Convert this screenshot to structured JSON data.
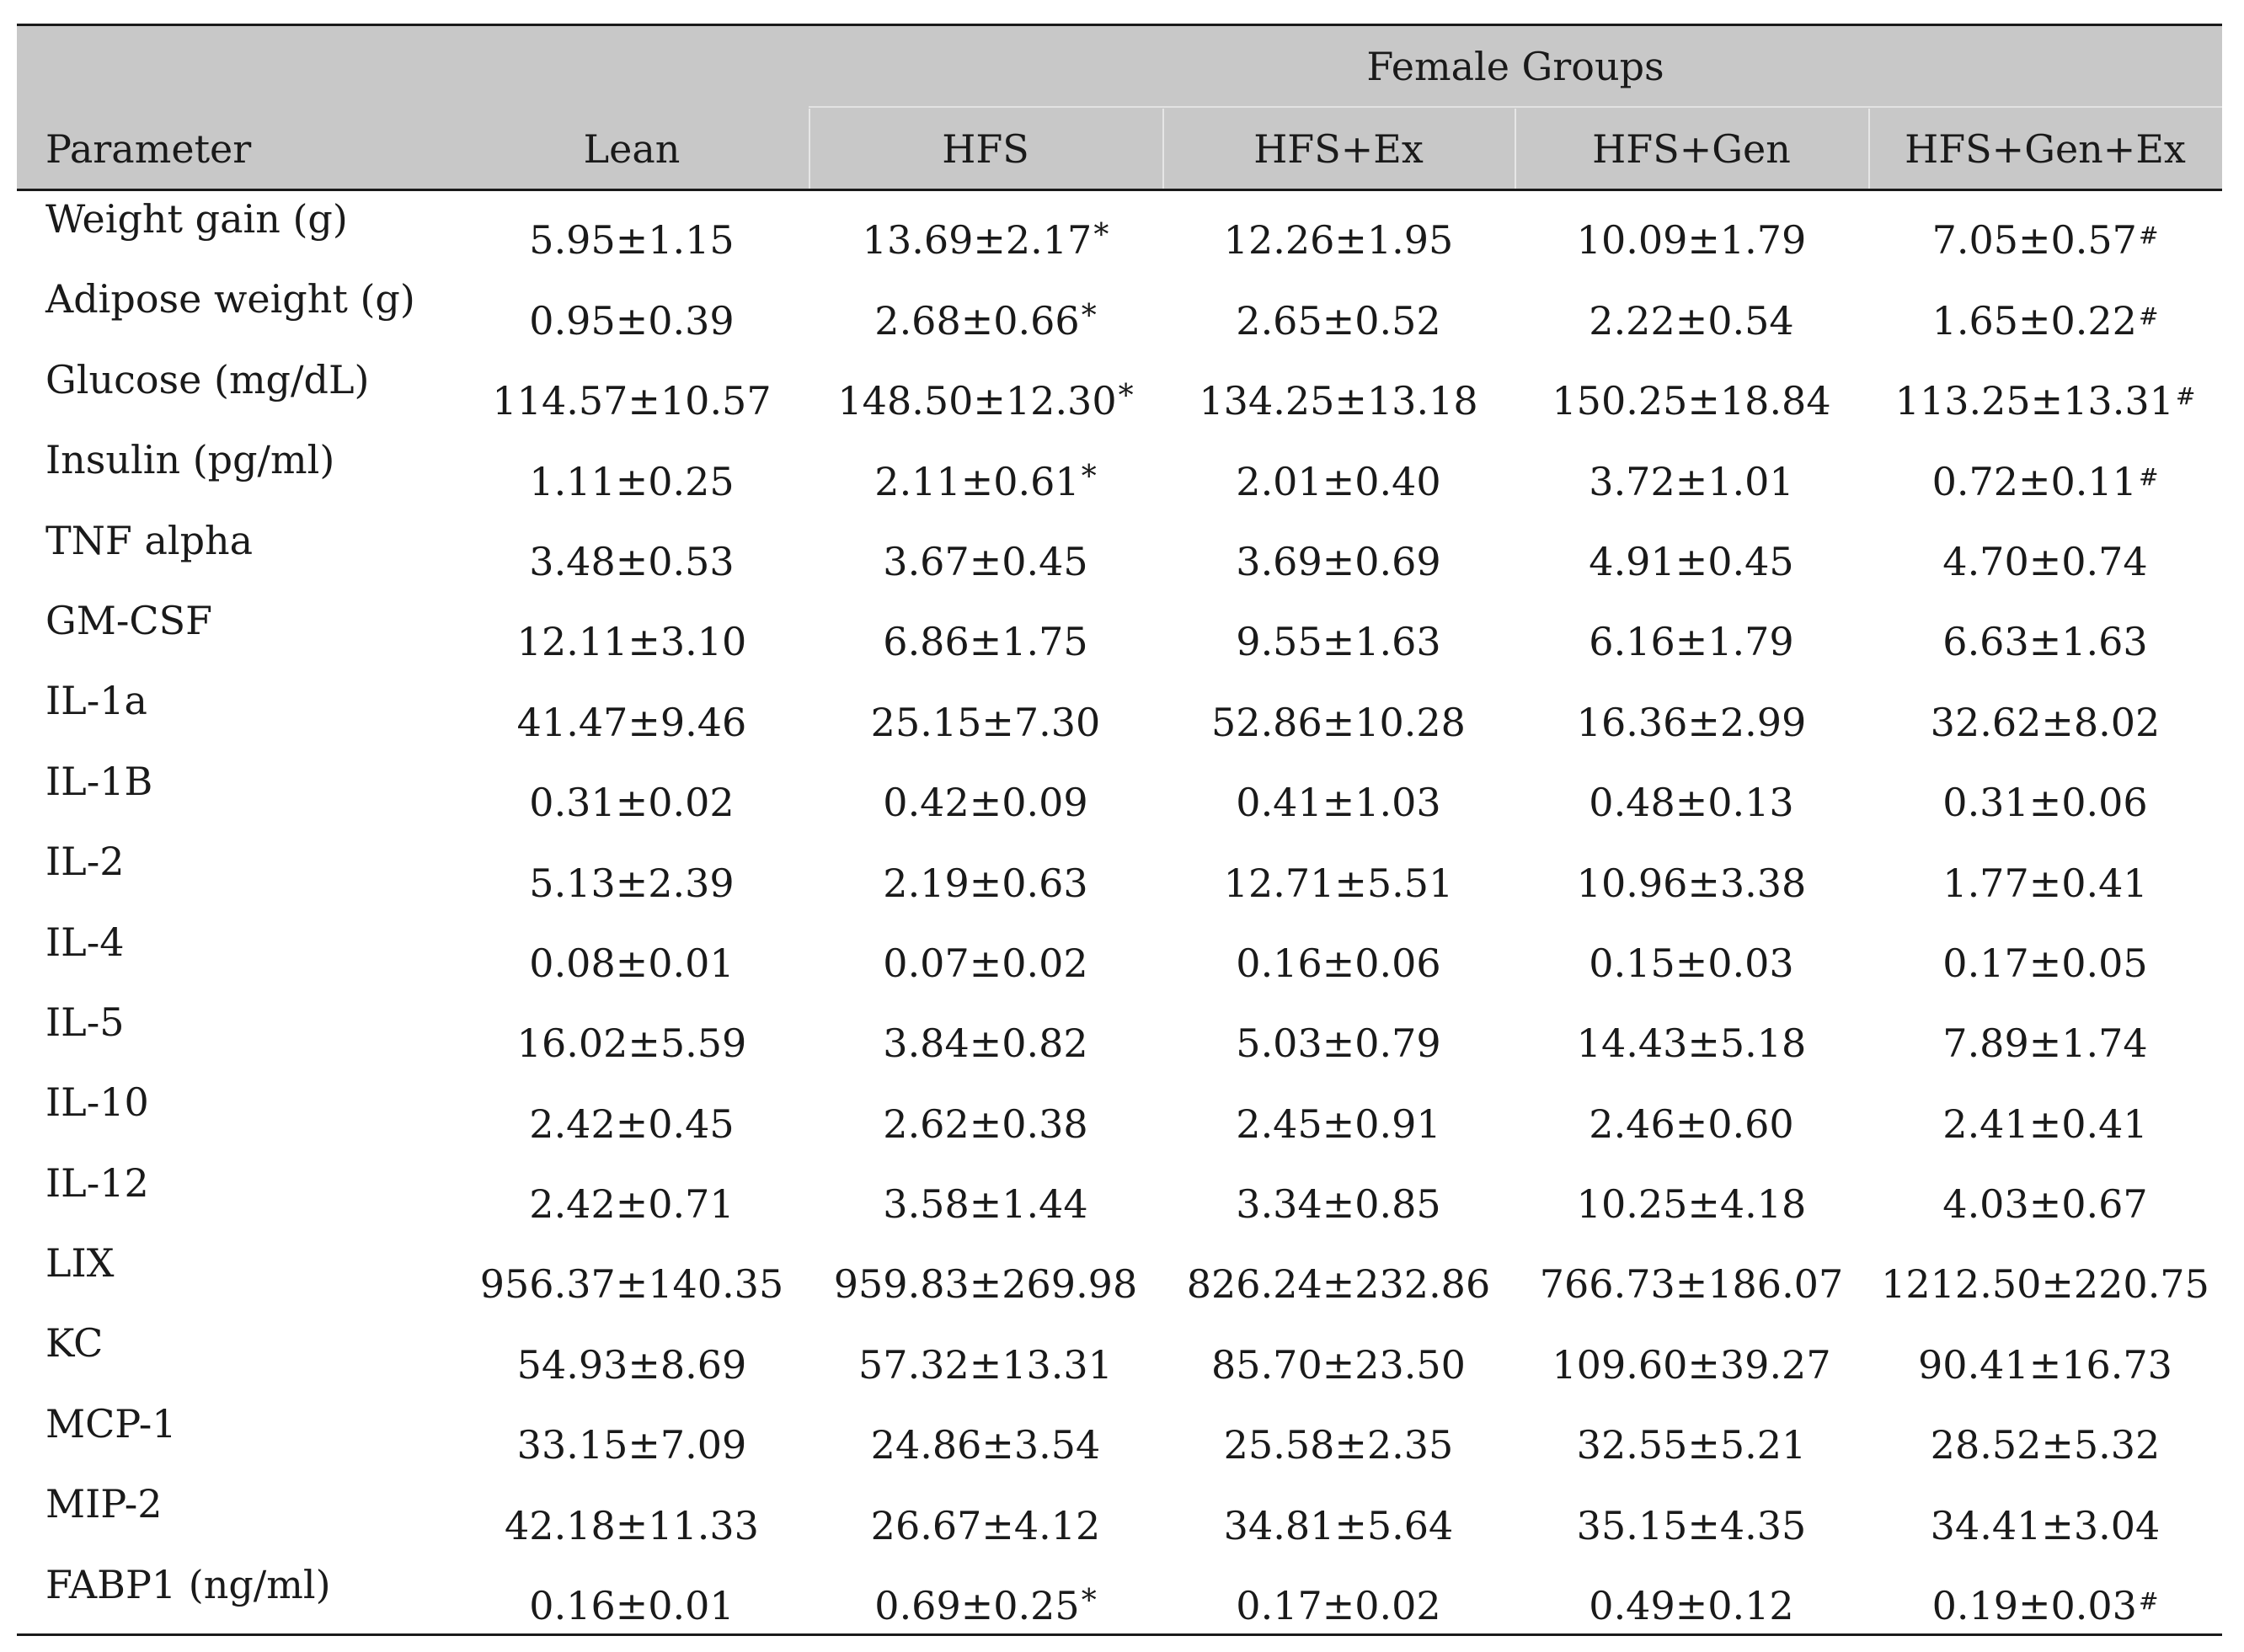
{
  "header": {
    "group_title": "Female Groups",
    "parameter_label": "Parameter",
    "columns": [
      "Lean",
      "HFS",
      "HFS+Ex",
      "HFS+Gen",
      "HFS+Gen+Ex"
    ]
  },
  "rows": [
    {
      "parameter": "Weight gain (g)",
      "values": [
        {
          "v": "5.95±1.15",
          "m": ""
        },
        {
          "v": "13.69±2.17",
          "m": "*"
        },
        {
          "v": "12.26±1.95",
          "m": ""
        },
        {
          "v": "10.09±1.79",
          "m": ""
        },
        {
          "v": "7.05±0.57",
          "m": "#"
        }
      ]
    },
    {
      "parameter": "Adipose weight (g)",
      "values": [
        {
          "v": "0.95±0.39",
          "m": ""
        },
        {
          "v": "2.68±0.66",
          "m": "*"
        },
        {
          "v": "2.65±0.52",
          "m": ""
        },
        {
          "v": "2.22±0.54",
          "m": ""
        },
        {
          "v": "1.65±0.22",
          "m": "#"
        }
      ]
    },
    {
      "parameter": "Glucose (mg/dL)",
      "values": [
        {
          "v": "114.57±10.57",
          "m": ""
        },
        {
          "v": "148.50±12.30",
          "m": "*"
        },
        {
          "v": "134.25±13.18",
          "m": ""
        },
        {
          "v": "150.25±18.84",
          "m": ""
        },
        {
          "v": "113.25±13.31",
          "m": "#"
        }
      ]
    },
    {
      "parameter": "Insulin (pg/ml)",
      "values": [
        {
          "v": "1.11±0.25",
          "m": ""
        },
        {
          "v": "2.11±0.61",
          "m": "*"
        },
        {
          "v": "2.01±0.40",
          "m": ""
        },
        {
          "v": "3.72±1.01",
          "m": ""
        },
        {
          "v": "0.72±0.11",
          "m": "#"
        }
      ]
    },
    {
      "parameter": "TNF alpha",
      "values": [
        {
          "v": "3.48±0.53",
          "m": ""
        },
        {
          "v": "3.67±0.45",
          "m": ""
        },
        {
          "v": "3.69±0.69",
          "m": ""
        },
        {
          "v": "4.91±0.45",
          "m": ""
        },
        {
          "v": "4.70±0.74",
          "m": ""
        }
      ]
    },
    {
      "parameter": "GM-CSF",
      "values": [
        {
          "v": "12.11±3.10",
          "m": ""
        },
        {
          "v": "6.86±1.75",
          "m": ""
        },
        {
          "v": "9.55±1.63",
          "m": ""
        },
        {
          "v": "6.16±1.79",
          "m": ""
        },
        {
          "v": "6.63±1.63",
          "m": ""
        }
      ]
    },
    {
      "parameter": "IL-1a",
      "values": [
        {
          "v": "41.47±9.46",
          "m": ""
        },
        {
          "v": "25.15±7.30",
          "m": ""
        },
        {
          "v": "52.86±10.28",
          "m": ""
        },
        {
          "v": "16.36±2.99",
          "m": ""
        },
        {
          "v": "32.62±8.02",
          "m": ""
        }
      ]
    },
    {
      "parameter": "IL-1B",
      "values": [
        {
          "v": "0.31±0.02",
          "m": ""
        },
        {
          "v": "0.42±0.09",
          "m": ""
        },
        {
          "v": "0.41±1.03",
          "m": ""
        },
        {
          "v": "0.48±0.13",
          "m": ""
        },
        {
          "v": "0.31±0.06",
          "m": ""
        }
      ]
    },
    {
      "parameter": "IL-2",
      "values": [
        {
          "v": "5.13±2.39",
          "m": ""
        },
        {
          "v": "2.19±0.63",
          "m": ""
        },
        {
          "v": "12.71±5.51",
          "m": ""
        },
        {
          "v": "10.96±3.38",
          "m": ""
        },
        {
          "v": "1.77±0.41",
          "m": ""
        }
      ]
    },
    {
      "parameter": "IL-4",
      "values": [
        {
          "v": "0.08±0.01",
          "m": ""
        },
        {
          "v": "0.07±0.02",
          "m": ""
        },
        {
          "v": "0.16±0.06",
          "m": ""
        },
        {
          "v": "0.15±0.03",
          "m": ""
        },
        {
          "v": "0.17±0.05",
          "m": ""
        }
      ]
    },
    {
      "parameter": "IL-5",
      "values": [
        {
          "v": "16.02±5.59",
          "m": ""
        },
        {
          "v": "3.84±0.82",
          "m": ""
        },
        {
          "v": "5.03±0.79",
          "m": ""
        },
        {
          "v": "14.43±5.18",
          "m": ""
        },
        {
          "v": "7.89±1.74",
          "m": ""
        }
      ]
    },
    {
      "parameter": "IL-10",
      "values": [
        {
          "v": "2.42±0.45",
          "m": ""
        },
        {
          "v": "2.62±0.38",
          "m": ""
        },
        {
          "v": "2.45±0.91",
          "m": ""
        },
        {
          "v": "2.46±0.60",
          "m": ""
        },
        {
          "v": "2.41±0.41",
          "m": ""
        }
      ]
    },
    {
      "parameter": "IL-12",
      "values": [
        {
          "v": "2.42±0.71",
          "m": ""
        },
        {
          "v": "3.58±1.44",
          "m": ""
        },
        {
          "v": "3.34±0.85",
          "m": ""
        },
        {
          "v": "10.25±4.18",
          "m": ""
        },
        {
          "v": "4.03±0.67",
          "m": ""
        }
      ]
    },
    {
      "parameter": "LIX",
      "values": [
        {
          "v": "956.37±140.35",
          "m": ""
        },
        {
          "v": "959.83±269.98",
          "m": ""
        },
        {
          "v": "826.24±232.86",
          "m": ""
        },
        {
          "v": "766.73±186.07",
          "m": ""
        },
        {
          "v": "1212.50±220.75",
          "m": ""
        }
      ]
    },
    {
      "parameter": "KC",
      "values": [
        {
          "v": "54.93±8.69",
          "m": ""
        },
        {
          "v": "57.32±13.31",
          "m": ""
        },
        {
          "v": "85.70±23.50",
          "m": ""
        },
        {
          "v": "109.60±39.27",
          "m": ""
        },
        {
          "v": "90.41±16.73",
          "m": ""
        }
      ]
    },
    {
      "parameter": "MCP-1",
      "values": [
        {
          "v": "33.15±7.09",
          "m": ""
        },
        {
          "v": "24.86±3.54",
          "m": ""
        },
        {
          "v": "25.58±2.35",
          "m": ""
        },
        {
          "v": "32.55±5.21",
          "m": ""
        },
        {
          "v": "28.52±5.32",
          "m": ""
        }
      ]
    },
    {
      "parameter": "MIP-2",
      "values": [
        {
          "v": "42.18±11.33",
          "m": ""
        },
        {
          "v": "26.67±4.12",
          "m": ""
        },
        {
          "v": "34.81±5.64",
          "m": ""
        },
        {
          "v": "35.15±4.35",
          "m": ""
        },
        {
          "v": "34.41±3.04",
          "m": ""
        }
      ]
    },
    {
      "parameter": "FABP1 (ng/ml)",
      "values": [
        {
          "v": "0.16±0.01",
          "m": ""
        },
        {
          "v": "0.69±0.25",
          "m": "*"
        },
        {
          "v": "0.17±0.02",
          "m": ""
        },
        {
          "v": "0.49±0.12",
          "m": ""
        },
        {
          "v": "0.19±0.03",
          "m": "#"
        }
      ]
    }
  ]
}
